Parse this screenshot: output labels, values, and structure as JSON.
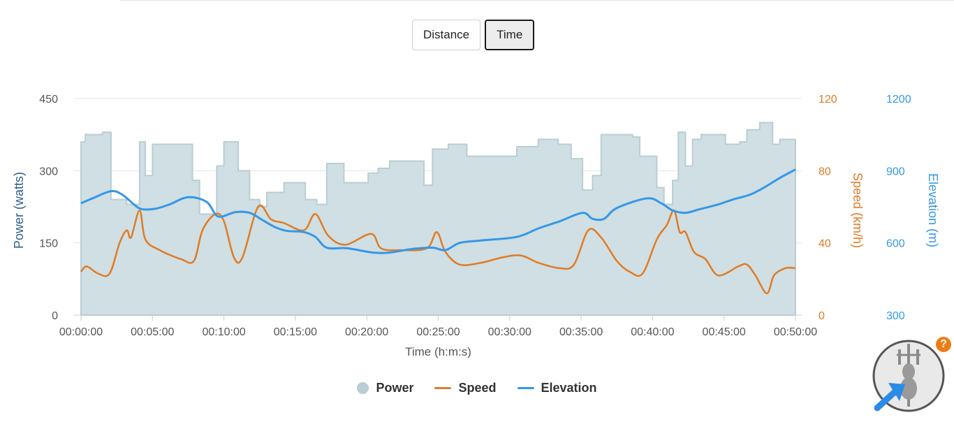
{
  "toggle": {
    "distance_label": "Distance",
    "time_label": "Time",
    "active": "Time"
  },
  "help": {
    "label": "?"
  },
  "colors": {
    "power_fill": "#cfdfe3",
    "power_stroke": "#b9ced4",
    "speed": "#e07b25",
    "elevation": "#3597e8",
    "axis_power": "#2f5f8f"
  },
  "chart_data": {
    "type": "line",
    "xlabel": "Time (h:m:s)",
    "x_ticks": [
      "00:00:00",
      "00:05:00",
      "00:10:00",
      "00:15:00",
      "00:20:00",
      "00:25:00",
      "00:30:00",
      "00:35:00",
      "00:40:00",
      "00:45:00",
      "00:50:00"
    ],
    "xlim_minutes": [
      0,
      50
    ],
    "axes": {
      "power": {
        "label": "Power (watts)",
        "ylim": [
          0,
          450
        ],
        "ticks": [
          "0",
          "150",
          "300",
          "450"
        ]
      },
      "speed": {
        "label": "Speed (km/h)",
        "ylim": [
          0,
          120
        ],
        "ticks": [
          "0",
          "40",
          "80",
          "120"
        ]
      },
      "elevation": {
        "label": "Elevation (m)",
        "ylim": [
          300,
          1200
        ],
        "ticks": [
          "300",
          "600",
          "900",
          "1200"
        ]
      }
    },
    "legend_placement": "bottom-center",
    "grid": true,
    "series": [
      {
        "name": "Power",
        "type": "area",
        "axis": "power",
        "points": [
          [
            0,
            360
          ],
          [
            0.3,
            375
          ],
          [
            1.5,
            380
          ],
          [
            2.1,
            240
          ],
          [
            3.2,
            230
          ],
          [
            4.1,
            360
          ],
          [
            4.5,
            290
          ],
          [
            5.0,
            355
          ],
          [
            7.8,
            280
          ],
          [
            8.3,
            210
          ],
          [
            9.5,
            310
          ],
          [
            10.0,
            360
          ],
          [
            11.0,
            300
          ],
          [
            11.8,
            240
          ],
          [
            12.5,
            225
          ],
          [
            13.0,
            255
          ],
          [
            14.2,
            275
          ],
          [
            15.7,
            240
          ],
          [
            16.5,
            230
          ],
          [
            17.2,
            315
          ],
          [
            18.4,
            275
          ],
          [
            20.1,
            295
          ],
          [
            20.8,
            305
          ],
          [
            21.6,
            320
          ],
          [
            24.0,
            270
          ],
          [
            24.6,
            345
          ],
          [
            25.7,
            355
          ],
          [
            27.0,
            330
          ],
          [
            30.5,
            350
          ],
          [
            32.0,
            365
          ],
          [
            33.4,
            355
          ],
          [
            34.3,
            325
          ],
          [
            35.1,
            260
          ],
          [
            35.8,
            290
          ],
          [
            36.4,
            375
          ],
          [
            38.6,
            370
          ],
          [
            39.1,
            330
          ],
          [
            40.3,
            265
          ],
          [
            40.8,
            230
          ],
          [
            41.4,
            280
          ],
          [
            41.8,
            380
          ],
          [
            42.3,
            310
          ],
          [
            42.8,
            365
          ],
          [
            43.4,
            375
          ],
          [
            45.1,
            355
          ],
          [
            46.1,
            360
          ],
          [
            46.6,
            385
          ],
          [
            47.5,
            400
          ],
          [
            48.4,
            355
          ],
          [
            48.9,
            365
          ],
          [
            50,
            365
          ]
        ]
      },
      {
        "name": "Speed",
        "type": "line",
        "axis": "speed",
        "points": [
          [
            0,
            24
          ],
          [
            0.4,
            27
          ],
          [
            1.2,
            23
          ],
          [
            2.0,
            23
          ],
          [
            2.7,
            40
          ],
          [
            3.2,
            47
          ],
          [
            3.5,
            43
          ],
          [
            4.1,
            58
          ],
          [
            4.5,
            42
          ],
          [
            5.5,
            36
          ],
          [
            7.0,
            31
          ],
          [
            7.9,
            30
          ],
          [
            8.5,
            47
          ],
          [
            9.4,
            56
          ],
          [
            10.0,
            52
          ],
          [
            10.7,
            32
          ],
          [
            11.3,
            32
          ],
          [
            12.4,
            60
          ],
          [
            13.3,
            53
          ],
          [
            14.2,
            51
          ],
          [
            15.6,
            47
          ],
          [
            16.4,
            56
          ],
          [
            17.3,
            44
          ],
          [
            18.5,
            39
          ],
          [
            20.3,
            45
          ],
          [
            21.0,
            37
          ],
          [
            22.4,
            36
          ],
          [
            24.2,
            37
          ],
          [
            24.9,
            46
          ],
          [
            25.5,
            35
          ],
          [
            26.5,
            28
          ],
          [
            28.0,
            29
          ],
          [
            29.5,
            32
          ],
          [
            30.8,
            33
          ],
          [
            32.0,
            29
          ],
          [
            33.5,
            26
          ],
          [
            34.5,
            28
          ],
          [
            35.5,
            47
          ],
          [
            36.4,
            43
          ],
          [
            37.5,
            30
          ],
          [
            38.4,
            24
          ],
          [
            39.3,
            23
          ],
          [
            40.3,
            42
          ],
          [
            41.0,
            50
          ],
          [
            41.5,
            58
          ],
          [
            41.9,
            46
          ],
          [
            42.3,
            46
          ],
          [
            42.9,
            35
          ],
          [
            43.7,
            31
          ],
          [
            44.6,
            22
          ],
          [
            46.0,
            27
          ],
          [
            46.6,
            28
          ],
          [
            47.2,
            22
          ],
          [
            48.0,
            12
          ],
          [
            48.5,
            22
          ],
          [
            49.3,
            26
          ],
          [
            50,
            26
          ]
        ]
      },
      {
        "name": "Elevation",
        "type": "line",
        "axis": "elevation",
        "points": [
          [
            0,
            765
          ],
          [
            0.8,
            785
          ],
          [
            2.1,
            815
          ],
          [
            2.9,
            800
          ],
          [
            3.8,
            755
          ],
          [
            4.3,
            740
          ],
          [
            5.2,
            742
          ],
          [
            6.2,
            760
          ],
          [
            7.5,
            790
          ],
          [
            8.8,
            770
          ],
          [
            9.6,
            710
          ],
          [
            10.8,
            728
          ],
          [
            11.8,
            725
          ],
          [
            12.7,
            695
          ],
          [
            13.6,
            665
          ],
          [
            14.4,
            650
          ],
          [
            15.6,
            645
          ],
          [
            16.4,
            625
          ],
          [
            17.2,
            580
          ],
          [
            18.6,
            578
          ],
          [
            20.4,
            560
          ],
          [
            21.6,
            560
          ],
          [
            23.2,
            575
          ],
          [
            24.6,
            580
          ],
          [
            25.5,
            570
          ],
          [
            26.5,
            600
          ],
          [
            28.0,
            610
          ],
          [
            30.5,
            625
          ],
          [
            32.0,
            660
          ],
          [
            33.5,
            690
          ],
          [
            35.1,
            725
          ],
          [
            35.8,
            700
          ],
          [
            36.6,
            700
          ],
          [
            37.5,
            745
          ],
          [
            39.6,
            785
          ],
          [
            40.6,
            765
          ],
          [
            41.4,
            735
          ],
          [
            42.3,
            725
          ],
          [
            43.3,
            740
          ],
          [
            44.6,
            760
          ],
          [
            45.6,
            780
          ],
          [
            46.8,
            800
          ],
          [
            47.8,
            830
          ],
          [
            48.9,
            870
          ],
          [
            50,
            905
          ]
        ]
      }
    ]
  }
}
